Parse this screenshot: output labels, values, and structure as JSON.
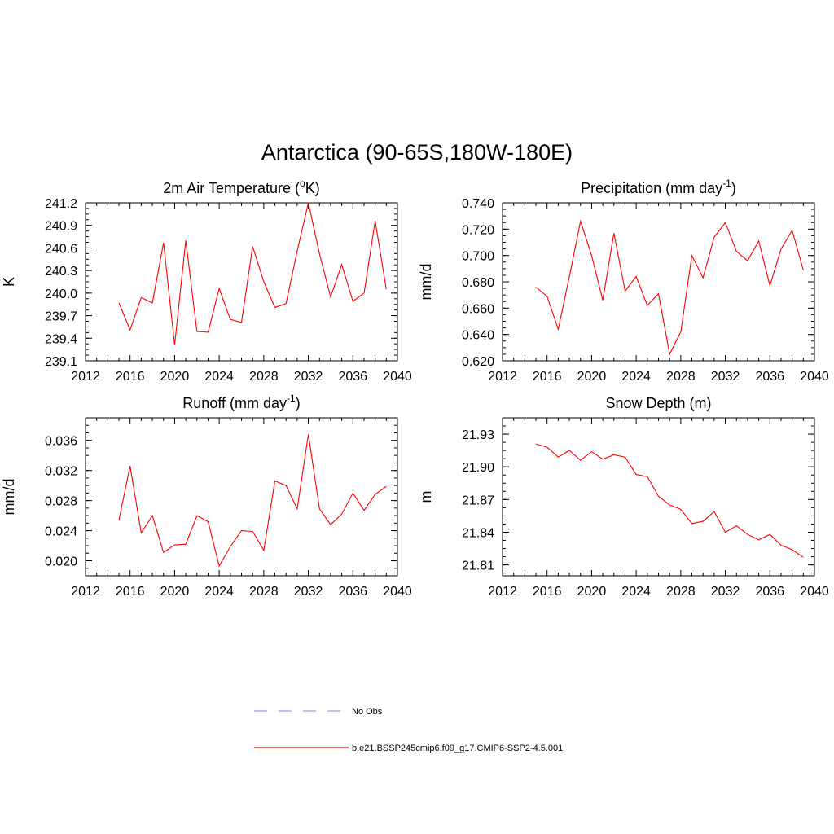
{
  "figure": {
    "title": "Antarctica (90-65S,180W-180E)"
  },
  "legend": {
    "entries": [
      {
        "label": "No Obs",
        "color": "#9999ff",
        "style": "dashed"
      },
      {
        "label": "b.e21.BSSP245cmip6.f09_g17.CMIP6-SSP2-4.5.001",
        "color": "#ff0000",
        "style": "solid"
      }
    ]
  },
  "chart_data": [
    {
      "type": "line",
      "title": "2m Air Temperature (°K)",
      "title_parts": {
        "pre": "2m Air Temperature (",
        "sup": "o",
        "post": "K)"
      },
      "ylabel": "K",
      "xlim": [
        2012,
        2040
      ],
      "ylim": [
        239.1,
        241.2
      ],
      "xticks": [
        "2012",
        "2016",
        "2020",
        "2024",
        "2028",
        "2032",
        "2036",
        "2040"
      ],
      "yticks": [
        "239.1",
        "239.4",
        "239.7",
        "240.0",
        "240.3",
        "240.6",
        "240.9",
        "241.2"
      ],
      "color": "#ff0000",
      "x": [
        2015,
        2016,
        2017,
        2018,
        2019,
        2020,
        2021,
        2022,
        2023,
        2024,
        2025,
        2026,
        2027,
        2028,
        2029,
        2030,
        2031,
        2032,
        2033,
        2034,
        2035,
        2036,
        2037,
        2038,
        2039
      ],
      "values": [
        239.87,
        239.51,
        239.94,
        239.87,
        240.67,
        239.31,
        240.7,
        239.49,
        239.48,
        240.06,
        239.65,
        239.61,
        240.62,
        240.15,
        239.81,
        239.86,
        240.56,
        241.2,
        240.52,
        239.95,
        240.38,
        239.89,
        240.0,
        240.96,
        240.05
      ]
    },
    {
      "type": "line",
      "title": "Precipitation (mm day-1)",
      "title_parts": {
        "pre": "Precipitation (mm day",
        "sup": "-1",
        "post": ")"
      },
      "ylabel": "mm/d",
      "xlim": [
        2012,
        2040
      ],
      "ylim": [
        0.62,
        0.74
      ],
      "xticks": [
        "2012",
        "2016",
        "2020",
        "2024",
        "2028",
        "2032",
        "2036",
        "2040"
      ],
      "yticks": [
        "0.620",
        "0.640",
        "0.660",
        "0.680",
        "0.700",
        "0.720",
        "0.740"
      ],
      "color": "#ff0000",
      "x": [
        2015,
        2016,
        2017,
        2018,
        2019,
        2020,
        2021,
        2022,
        2023,
        2024,
        2025,
        2026,
        2027,
        2028,
        2029,
        2030,
        2031,
        2032,
        2033,
        2034,
        2035,
        2036,
        2037,
        2038,
        2039
      ],
      "values": [
        0.676,
        0.669,
        0.644,
        0.684,
        0.726,
        0.7,
        0.666,
        0.717,
        0.673,
        0.684,
        0.662,
        0.671,
        0.625,
        0.642,
        0.7,
        0.683,
        0.714,
        0.725,
        0.703,
        0.696,
        0.711,
        0.677,
        0.705,
        0.719,
        0.689
      ]
    },
    {
      "type": "line",
      "title": "Runoff (mm day-1)",
      "title_parts": {
        "pre": "Runoff (mm day",
        "sup": "-1",
        "post": ")"
      },
      "ylabel": "mm/d",
      "xlim": [
        2012,
        2040
      ],
      "ylim": [
        0.018,
        0.039
      ],
      "xticks": [
        "2012",
        "2016",
        "2020",
        "2024",
        "2028",
        "2032",
        "2036",
        "2040"
      ],
      "yticks": [
        "0.020",
        "0.024",
        "0.028",
        "0.032",
        "0.036"
      ],
      "ytick_values": [
        0.02,
        0.024,
        0.028,
        0.032,
        0.036
      ],
      "color": "#ff0000",
      "x": [
        2015,
        2016,
        2017,
        2018,
        2019,
        2020,
        2021,
        2022,
        2023,
        2024,
        2025,
        2026,
        2027,
        2028,
        2029,
        2030,
        2031,
        2032,
        2033,
        2034,
        2035,
        2036,
        2037,
        2038,
        2039
      ],
      "values": [
        0.0254,
        0.0326,
        0.0237,
        0.026,
        0.0211,
        0.0221,
        0.0222,
        0.026,
        0.0252,
        0.0193,
        0.0219,
        0.024,
        0.0239,
        0.0214,
        0.0306,
        0.03,
        0.0269,
        0.0368,
        0.0269,
        0.0248,
        0.0262,
        0.029,
        0.0267,
        0.0288,
        0.0299
      ]
    },
    {
      "type": "line",
      "title": "Snow Depth (m)",
      "title_parts": {
        "pre": "Snow Depth (m)",
        "sup": "",
        "post": ""
      },
      "ylabel": "m",
      "xlim": [
        2012,
        2040
      ],
      "ylim": [
        21.8,
        21.945
      ],
      "xticks": [
        "2012",
        "2016",
        "2020",
        "2024",
        "2028",
        "2032",
        "2036",
        "2040"
      ],
      "yticks": [
        "21.81",
        "21.84",
        "21.87",
        "21.90",
        "21.93"
      ],
      "ytick_values": [
        21.81,
        21.84,
        21.87,
        21.9,
        21.93
      ],
      "color": "#ff0000",
      "x": [
        2015,
        2016,
        2017,
        2018,
        2019,
        2020,
        2021,
        2022,
        2023,
        2024,
        2025,
        2026,
        2027,
        2028,
        2029,
        2030,
        2031,
        2032,
        2033,
        2034,
        2035,
        2036,
        2037,
        2038,
        2039
      ],
      "values": [
        21.921,
        21.918,
        21.909,
        21.915,
        21.906,
        21.914,
        21.907,
        21.911,
        21.909,
        21.893,
        21.891,
        21.873,
        21.865,
        21.861,
        21.848,
        21.85,
        21.859,
        21.84,
        21.846,
        21.838,
        21.833,
        21.838,
        21.828,
        21.824,
        21.817
      ]
    }
  ]
}
